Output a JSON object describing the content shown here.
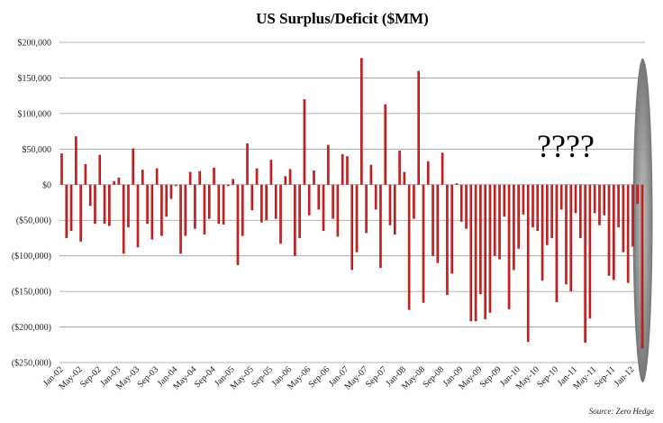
{
  "chart_data": {
    "type": "bar",
    "title": "US Surplus/Deficit ($MM)",
    "xlabel": "",
    "ylabel": "",
    "ylim": [
      -250000,
      200000
    ],
    "y_ticks": [
      200000,
      150000,
      100000,
      50000,
      0,
      -50000,
      -100000,
      -150000,
      -200000,
      -250000
    ],
    "y_tick_labels": [
      "$200,000",
      "$150,000",
      "$100,000",
      "$50,000",
      "$0",
      "($50,000)",
      "($100,000)",
      "($150,000)",
      "($200,000)",
      "($250,000)"
    ],
    "x_tick_labels": [
      "Jan-02",
      "May-02",
      "Sep-02",
      "Jan-03",
      "May-03",
      "Sep-03",
      "Jan-04",
      "May-04",
      "Sep-04",
      "Jan-05",
      "May-05",
      "Sep-05",
      "Jan-06",
      "May-06",
      "Sep-06",
      "Jan-07",
      "May-07",
      "Sep-07",
      "Jan-08",
      "May-08",
      "Sep-08",
      "Jan-09",
      "May-09",
      "Sep-09",
      "Jan-10",
      "May-10",
      "Sep-10",
      "Jan-11",
      "May-11",
      "Sep-11",
      "Jan-12"
    ],
    "x_tick_every": 4,
    "grid": true,
    "bar_color": "#c00000",
    "series": [
      {
        "name": "US Surplus/Deficit",
        "values": [
          44000,
          -75000,
          -65000,
          68000,
          -80000,
          29000,
          -30000,
          -55000,
          42000,
          -55000,
          -58000,
          5000,
          10000,
          -97000,
          -60000,
          51000,
          -88000,
          21000,
          -55000,
          -77000,
          23000,
          -72000,
          -45000,
          -20000,
          -2000,
          -97000,
          -72000,
          18000,
          -62000,
          19000,
          -70000,
          -48000,
          24000,
          -55000,
          -56000,
          -2000,
          8000,
          -113000,
          -72000,
          58000,
          -36000,
          23000,
          -53000,
          -50000,
          35000,
          -48000,
          -83000,
          12000,
          22000,
          -100000,
          -75000,
          120000,
          -43000,
          20000,
          -35000,
          -65000,
          56000,
          -48000,
          -73000,
          43000,
          40000,
          -120000,
          -95000,
          178000,
          -68000,
          28000,
          -35000,
          -117000,
          113000,
          -57000,
          -70000,
          48000,
          18000,
          -176000,
          -48000,
          160000,
          -166000,
          33000,
          -100000,
          -110000,
          45000,
          -155000,
          -125000,
          2000,
          -52000,
          -62000,
          -192000,
          -192000,
          -154000,
          -189000,
          -180000,
          -100000,
          -105000,
          -45000,
          -175000,
          -120000,
          -90000,
          -42000,
          -221000,
          -60000,
          -65000,
          -135000,
          -85000,
          -75000,
          -165000,
          -35000,
          -140000,
          -150000,
          -40000,
          -75000,
          -222000,
          -188000,
          -40000,
          -57000,
          -43000,
          -128000,
          -134000,
          -60000,
          -95000,
          -138000,
          -87000,
          -27000,
          -230000
        ]
      }
    ],
    "annotations": [
      {
        "text": "????",
        "type": "text"
      },
      {
        "text": "",
        "type": "ellipse-highlight",
        "target": "Jan-12"
      }
    ],
    "source": "Source: Zero Hedge"
  },
  "colors": {
    "bar": "#c00000",
    "bar_highlight": "#e33030",
    "grid": "#9a9a9a",
    "ellipse": "#8c8c8c"
  }
}
